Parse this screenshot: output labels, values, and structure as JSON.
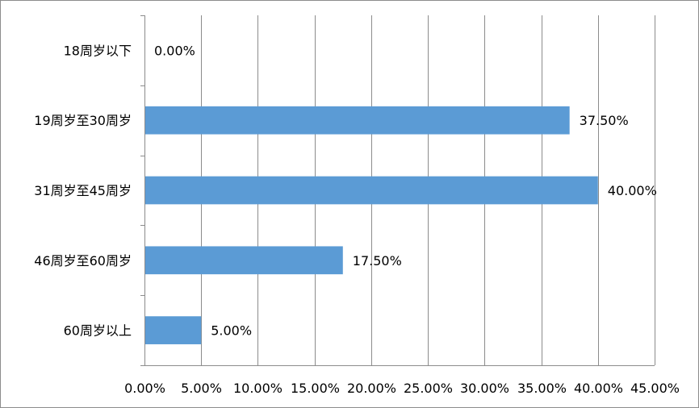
{
  "chart_data": {
    "type": "bar",
    "orientation": "horizontal",
    "categories": [
      "18周岁以下",
      "19周岁至30周岁",
      "31周岁至45周岁",
      "46周岁至60周岁",
      "60周岁以上"
    ],
    "values": [
      0.0,
      37.5,
      40.0,
      17.5,
      5.0
    ],
    "data_labels": [
      "0.00%",
      "37.50%",
      "40.00%",
      "17.50%",
      "5.00%"
    ],
    "xticks": [
      "0.00%",
      "5.00%",
      "10.00%",
      "15.00%",
      "20.00%",
      "25.00%",
      "30.00%",
      "35.00%",
      "40.00%",
      "45.00%"
    ],
    "xlim": [
      0,
      45
    ],
    "grid": true,
    "bar_color": "#5B9BD5"
  }
}
